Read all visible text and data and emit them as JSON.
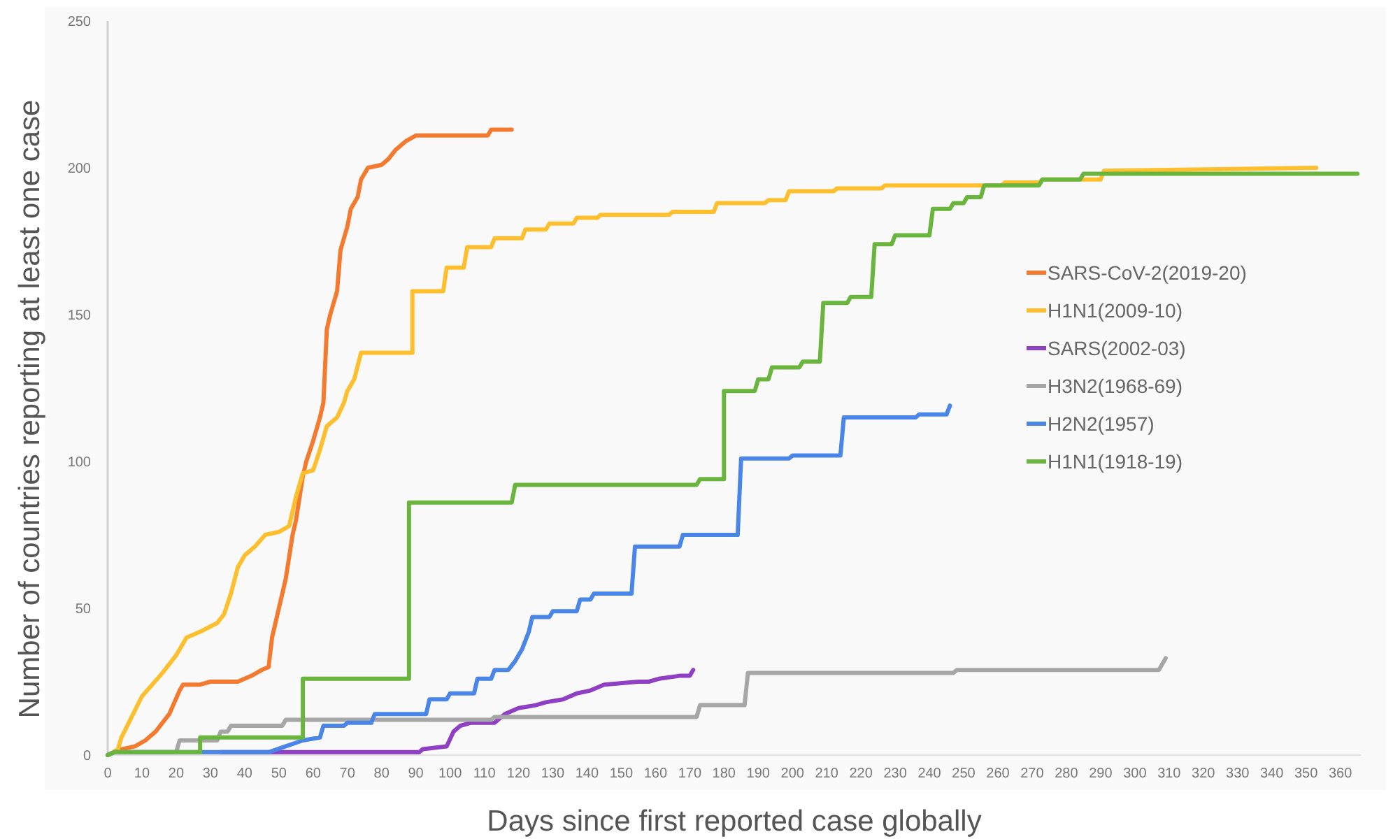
{
  "chart_data": {
    "type": "line",
    "xlabel": "Days since first reported case globally",
    "ylabel": "Number of countries reporting at least one case",
    "xlim": [
      0,
      366
    ],
    "ylim": [
      0,
      250
    ],
    "xticks": [
      0,
      10,
      20,
      30,
      40,
      50,
      60,
      70,
      80,
      90,
      100,
      110,
      120,
      130,
      140,
      150,
      160,
      170,
      180,
      190,
      200,
      210,
      220,
      230,
      240,
      250,
      260,
      270,
      280,
      290,
      300,
      310,
      320,
      330,
      340,
      350,
      360
    ],
    "yticks": [
      0,
      50,
      100,
      150,
      200,
      250
    ],
    "grid": false,
    "legend": "right",
    "marker": "none",
    "line_style": "solid",
    "series": [
      {
        "name": "SARS-CoV-2(2019-20)",
        "color": "#f47a30",
        "x": [
          0,
          4,
          8,
          11,
          14,
          18,
          21,
          22,
          27,
          30,
          38,
          42,
          45,
          47,
          48,
          50,
          52,
          54,
          55,
          57,
          58,
          60,
          62,
          63,
          64,
          65,
          67,
          68,
          70,
          71,
          73,
          74,
          76,
          80,
          82,
          84,
          87,
          90,
          111,
          112,
          118
        ],
        "values": [
          0,
          2,
          3,
          5,
          8,
          14,
          22,
          24,
          24,
          25,
          25,
          27,
          29,
          30,
          40,
          50,
          60,
          75,
          80,
          95,
          100,
          107,
          115,
          120,
          145,
          150,
          158,
          172,
          180,
          186,
          190,
          196,
          200,
          201,
          203,
          206,
          209,
          211,
          211,
          213,
          213
        ]
      },
      {
        "name": "H1N1(2009-10)",
        "color": "#fdbf2d",
        "x": [
          0,
          3,
          4,
          7,
          10,
          13,
          16,
          20,
          23,
          27,
          32,
          34,
          36,
          38,
          40,
          43,
          46,
          50,
          53,
          55,
          57,
          60,
          62,
          64,
          67,
          69,
          70,
          72,
          74,
          89,
          89,
          98,
          99,
          104,
          105,
          112,
          113,
          121,
          122,
          128,
          129,
          136,
          137,
          143,
          144,
          164,
          165,
          177,
          178,
          192,
          193,
          198,
          199,
          212,
          213,
          226,
          227,
          261,
          262,
          272,
          273,
          290,
          291,
          353
        ],
        "values": [
          0,
          2,
          6,
          13,
          20,
          24,
          28,
          34,
          40,
          42,
          45,
          48,
          55,
          64,
          68,
          71,
          75,
          76,
          78,
          88,
          96,
          97,
          104,
          112,
          115,
          120,
          124,
          128,
          137,
          137,
          158,
          158,
          166,
          166,
          173,
          173,
          176,
          176,
          179,
          179,
          181,
          181,
          183,
          183,
          184,
          184,
          185,
          185,
          188,
          188,
          189,
          189,
          192,
          192,
          193,
          193,
          194,
          194,
          195,
          195,
          196,
          196,
          199,
          200
        ]
      },
      {
        "name": "SARS(2002-03)",
        "color": "#8e3fc4",
        "x": [
          33,
          91,
          92,
          99,
          101,
          103,
          106,
          113,
          116,
          118,
          120,
          125,
          128,
          133,
          137,
          141,
          145,
          155,
          158,
          161,
          167,
          170,
          171
        ],
        "values": [
          1,
          1,
          2,
          3,
          8,
          10,
          11,
          11,
          14,
          15,
          16,
          17,
          18,
          19,
          21,
          22,
          24,
          25,
          25,
          26,
          27,
          27,
          29
        ]
      },
      {
        "name": "H3N2(1968-69)",
        "color": "#a6a6a6",
        "x": [
          0,
          2,
          20,
          21,
          32,
          33,
          35,
          36,
          51,
          52,
          112,
          113,
          172,
          173,
          186,
          187,
          247,
          248,
          307,
          309
        ],
        "values": [
          0,
          1,
          1,
          5,
          5,
          8,
          8,
          10,
          10,
          12,
          12,
          13,
          13,
          17,
          17,
          28,
          28,
          29,
          29,
          33
        ]
      },
      {
        "name": "H2N2(1957)",
        "color": "#4a86e8",
        "x": [
          0,
          2,
          47,
          52,
          57,
          62,
          63,
          69,
          70,
          77,
          78,
          93,
          94,
          99,
          100,
          107,
          108,
          112,
          113,
          117,
          119,
          121,
          123,
          124,
          129,
          130,
          137,
          138,
          141,
          142,
          153,
          154,
          167,
          168,
          184,
          185,
          199,
          200,
          214,
          215,
          236,
          237,
          245,
          246
        ],
        "values": [
          0,
          1,
          1,
          3,
          5,
          6,
          10,
          10,
          11,
          11,
          14,
          14,
          19,
          19,
          21,
          21,
          26,
          26,
          29,
          29,
          32,
          36,
          42,
          47,
          47,
          49,
          49,
          53,
          53,
          55,
          55,
          71,
          71,
          75,
          75,
          101,
          101,
          102,
          102,
          115,
          115,
          116,
          116,
          119
        ]
      },
      {
        "name": "H1N1(1918-19)",
        "color": "#6ab53e",
        "x": [
          0,
          2,
          27,
          27,
          57,
          57,
          88,
          88,
          118,
          119,
          172,
          173,
          180,
          180,
          189,
          190,
          193,
          194,
          202,
          203,
          208,
          209,
          216,
          217,
          223,
          224,
          229,
          230,
          240,
          241,
          246,
          247,
          250,
          251,
          255,
          256,
          272,
          273,
          284,
          285,
          365
        ],
        "values": [
          0,
          1,
          1,
          6,
          6,
          26,
          26,
          86,
          86,
          92,
          92,
          94,
          94,
          124,
          124,
          128,
          128,
          132,
          132,
          134,
          134,
          154,
          154,
          156,
          156,
          174,
          174,
          177,
          177,
          186,
          186,
          188,
          188,
          190,
          190,
          194,
          194,
          196,
          196,
          198,
          198
        ]
      }
    ]
  }
}
